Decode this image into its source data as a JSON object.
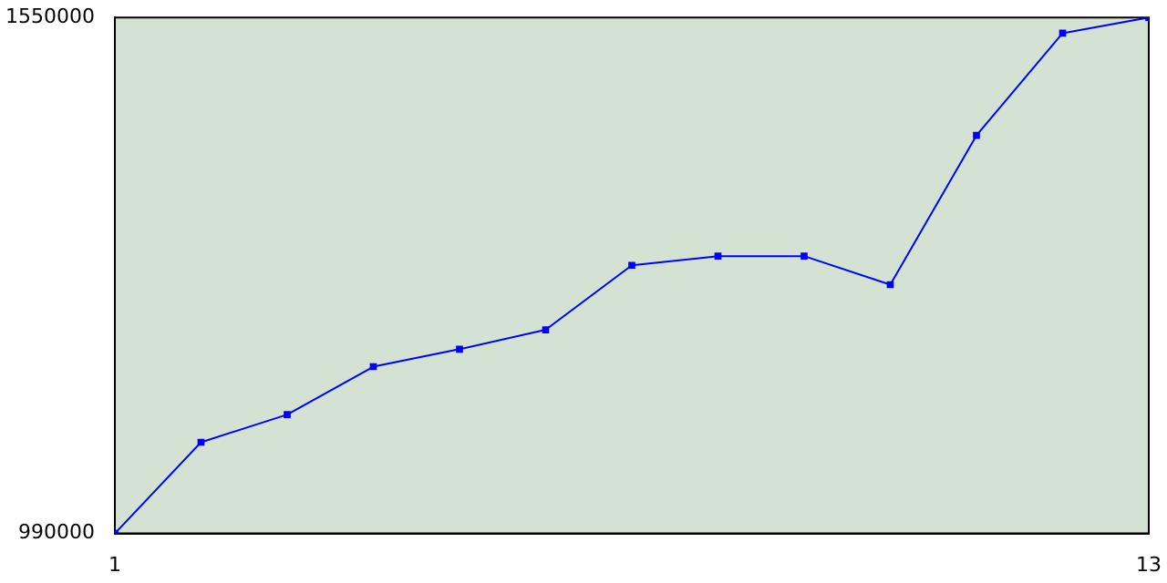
{
  "chart_data": {
    "type": "line",
    "x": [
      1,
      2,
      3,
      4,
      5,
      6,
      7,
      8,
      9,
      10,
      11,
      12,
      13
    ],
    "series": [
      {
        "color": "#0000ff",
        "values": [
          990000,
          1089000,
          1119000,
          1171000,
          1190000,
          1211000,
          1281000,
          1291000,
          1291000,
          1260000,
          1422000,
          1533000,
          1550000
        ]
      }
    ],
    "xlim": [
      1,
      13
    ],
    "xticks": [
      1,
      13
    ],
    "ylim": [
      990000,
      1550000
    ],
    "yticks": [
      990000,
      1550000
    ],
    "grid": false,
    "legend": false,
    "marker": "square",
    "line_style": "solid"
  }
}
